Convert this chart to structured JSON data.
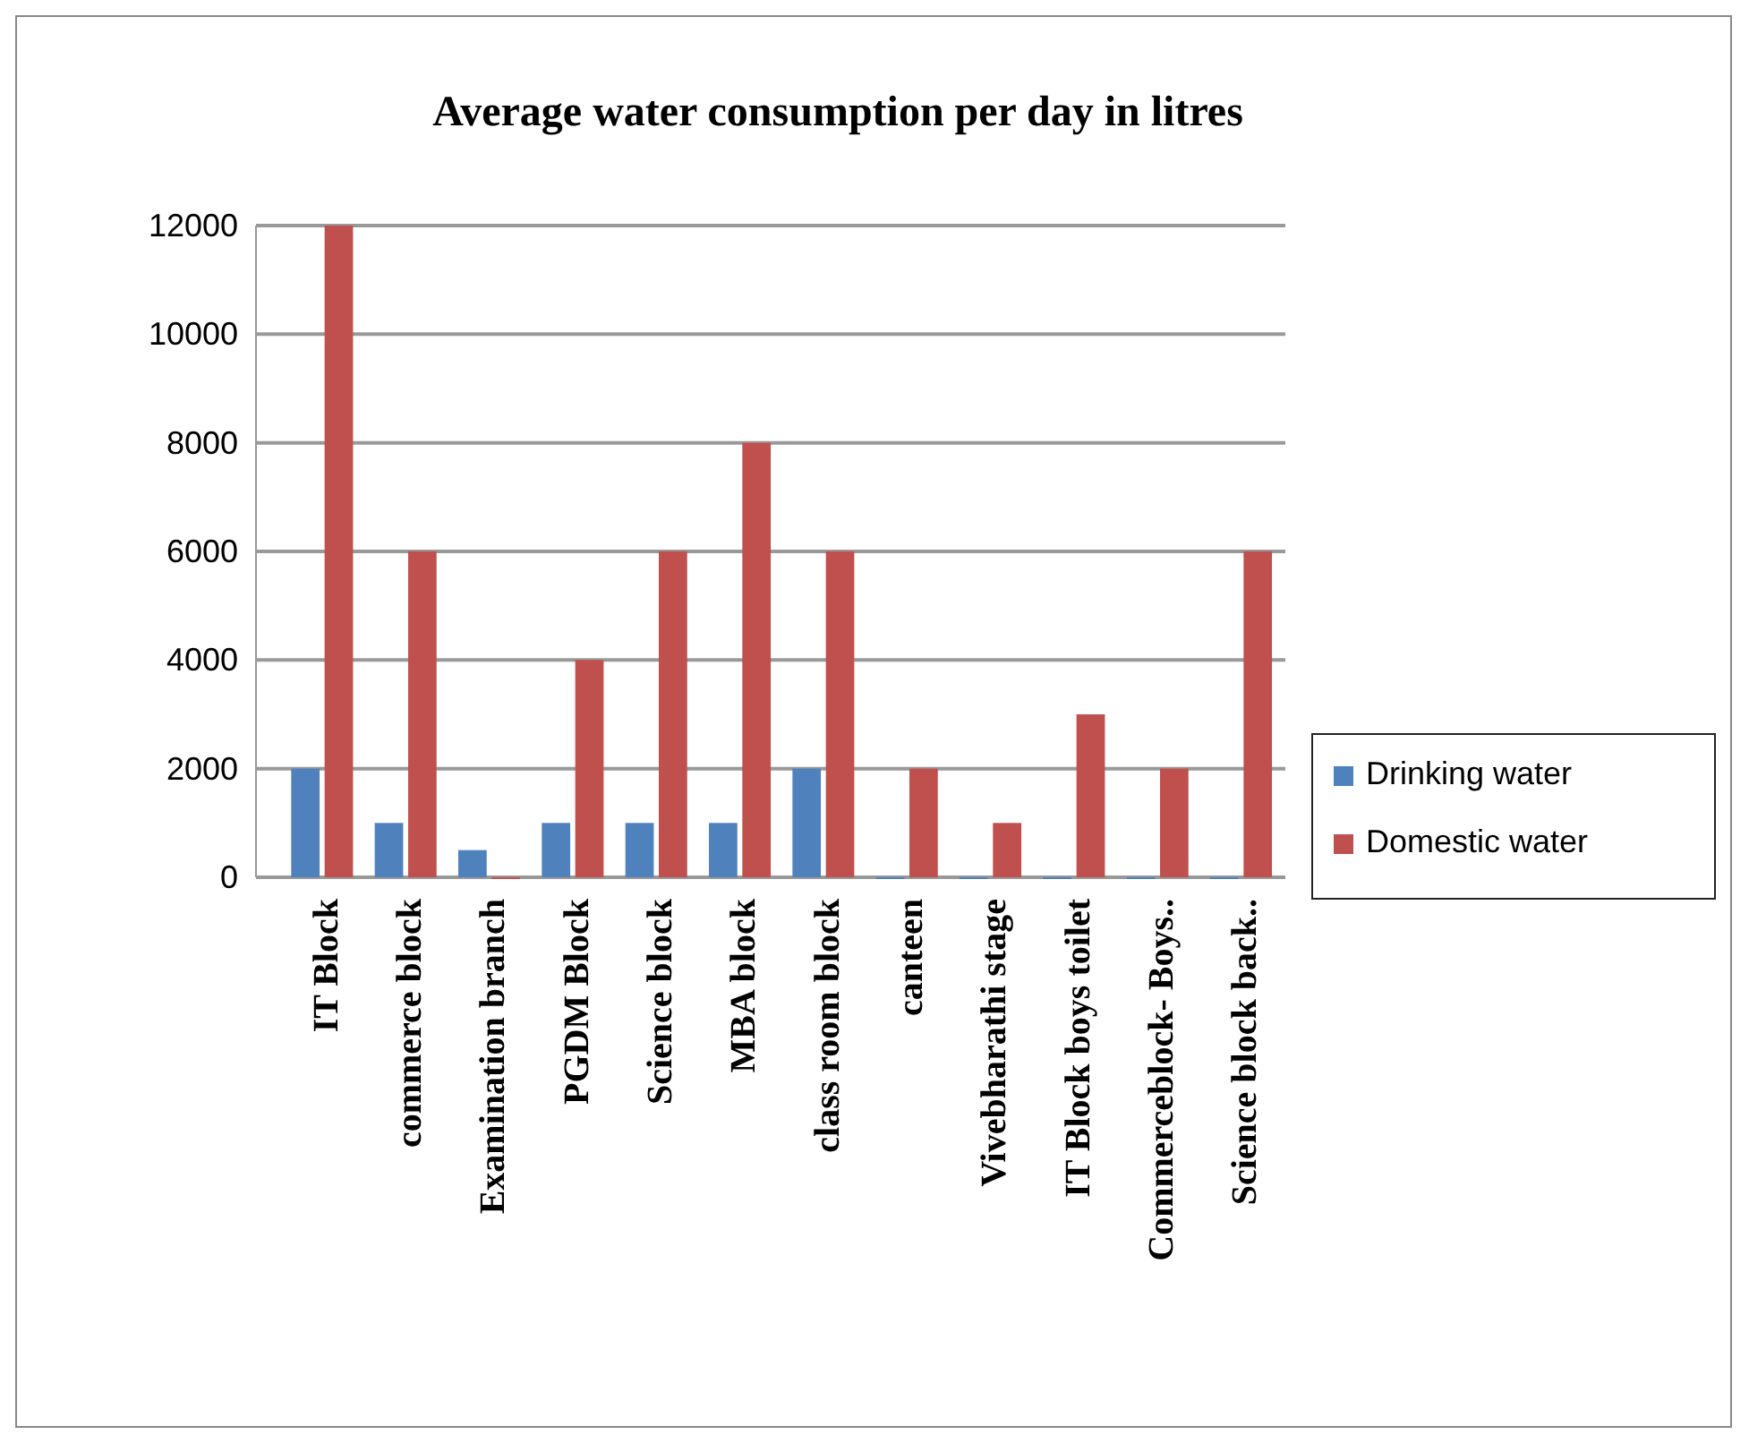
{
  "chart_data": {
    "type": "bar",
    "title": "Average water consumption per day in litres",
    "categories": [
      "IT Block",
      "commerce block",
      "Examination branch",
      "PGDM Block",
      "Science block",
      "MBA block",
      "class room block",
      "canteen",
      "Vivebharathi stage",
      "IT Block boys toilet",
      "Commerceblock- Boys..",
      "Science block back.."
    ],
    "series": [
      {
        "name": "Drinking water",
        "color": "#4f81bd",
        "values": [
          2000,
          1000,
          500,
          1000,
          1000,
          1000,
          2000,
          0,
          0,
          0,
          0,
          0
        ]
      },
      {
        "name": "Domestic water",
        "color": "#c0504d",
        "values": [
          12000,
          6000,
          0,
          4000,
          6000,
          8000,
          6000,
          2000,
          1000,
          3000,
          2000,
          6000
        ]
      }
    ],
    "ylim": [
      0,
      12000
    ],
    "yticks": [
      0,
      2000,
      4000,
      6000,
      8000,
      10000,
      12000
    ],
    "grid": "y",
    "legend": "right"
  }
}
